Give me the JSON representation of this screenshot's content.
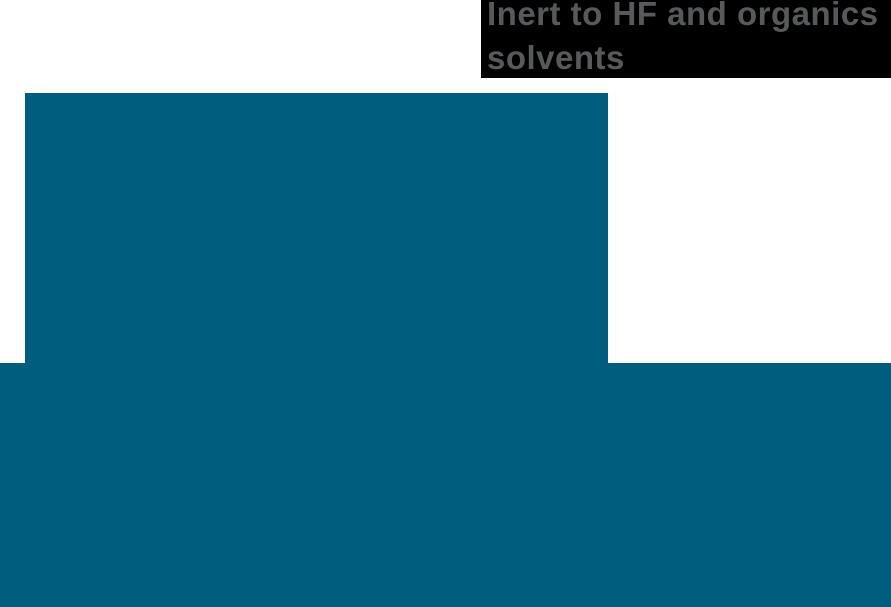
{
  "callout": {
    "lines": [
      "Inert to HF and organics",
      "solvents"
    ],
    "full_text": "Inert to HF and organics solvents"
  },
  "colors": {
    "page-bg": "#ffffff",
    "callout-bg": "#000000",
    "callout-text": "#58595b",
    "teal-panel": "#005d7d"
  }
}
